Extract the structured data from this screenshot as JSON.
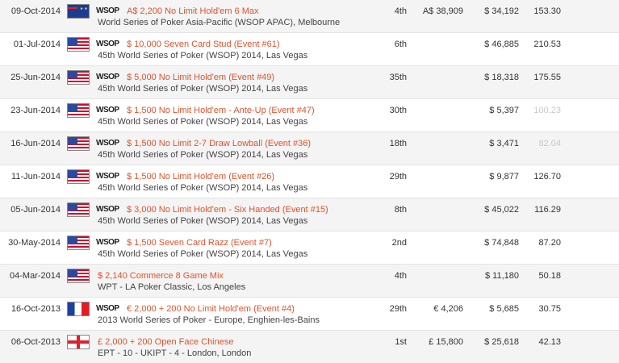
{
  "logo_text": "WSOP",
  "rows": [
    {
      "date": "09-Oct-2014",
      "flag": "australia",
      "show_logo": true,
      "event": "A$ 2,200 No Limit Hold'em 6 Max",
      "sub": "World Series of Poker Asia-Pacific (WSOP APAC), Melbourne",
      "place": "4th",
      "local": "A$ 38,909",
      "usd": "$ 34,192",
      "points": "153.30"
    },
    {
      "date": "01-Jul-2014",
      "flag": "usa",
      "show_logo": true,
      "event": "$ 10,000 Seven Card Stud (Event #61)",
      "sub": "45th World Series of Poker (WSOP) 2014, Las Vegas",
      "place": "6th",
      "local": "",
      "usd": "$ 46,885",
      "points": "210.53"
    },
    {
      "date": "25-Jun-2014",
      "flag": "usa",
      "show_logo": true,
      "event": "$ 5,000 No Limit Hold'em (Event #49)",
      "sub": "45th World Series of Poker (WSOP) 2014, Las Vegas",
      "place": "35th",
      "local": "",
      "usd": "$ 18,318",
      "points": "175.55"
    },
    {
      "date": "23-Jun-2014",
      "flag": "usa",
      "show_logo": true,
      "event": "$ 1,500 No Limit Hold'em - Ante-Up (Event #47)",
      "sub": "45th World Series of Poker (WSOP) 2014, Las Vegas",
      "place": "30th",
      "local": "",
      "usd": "$ 5,397",
      "points": "100.23"
    },
    {
      "date": "16-Jun-2014",
      "flag": "usa",
      "show_logo": true,
      "event": "$ 1,500 No Limit 2-7 Draw Lowball (Event #36)",
      "sub": "45th World Series of Poker (WSOP) 2014, Las Vegas",
      "place": "18th",
      "local": "",
      "usd": "$ 3,471",
      "points": "82.04"
    },
    {
      "date": "11-Jun-2014",
      "flag": "usa",
      "show_logo": true,
      "event": "$ 1,500 No Limit Hold'em (Event #26)",
      "sub": "45th World Series of Poker (WSOP) 2014, Las Vegas",
      "place": "29th",
      "local": "",
      "usd": "$ 9,877",
      "points": "126.70"
    },
    {
      "date": "05-Jun-2014",
      "flag": "usa",
      "show_logo": true,
      "event": "$ 3,000 No Limit Hold'em - Six Handed (Event #15)",
      "sub": "45th World Series of Poker (WSOP) 2014, Las Vegas",
      "place": "8th",
      "local": "",
      "usd": "$ 45,022",
      "points": "116.29"
    },
    {
      "date": "30-May-2014",
      "flag": "usa",
      "show_logo": true,
      "event": "$ 1,500 Seven Card Razz (Event #7)",
      "sub": "45th World Series of Poker (WSOP) 2014, Las Vegas",
      "place": "2nd",
      "local": "",
      "usd": "$ 74,848",
      "points": "87.20"
    },
    {
      "date": "04-Mar-2014",
      "flag": "usa",
      "show_logo": false,
      "event": "$ 2,140 Commerce 8 Game Mix",
      "sub": "WPT - LA Poker Classic, Los Angeles",
      "place": "4th",
      "local": "",
      "usd": "$ 11,180",
      "points": "50.18"
    },
    {
      "date": "16-Oct-2013",
      "flag": "france",
      "show_logo": true,
      "event": "€ 2,000 + 200 No Limit Hold'em (Event #4)",
      "sub": "2013 World Series of Poker - Europe, Enghien-les-Bains",
      "place": "29th",
      "local": "€ 4,206",
      "usd": "$ 5,685",
      "points": "30.75"
    },
    {
      "date": "06-Oct-2013",
      "flag": "england",
      "show_logo": false,
      "event": "£ 2,000 + 200 Open Face Chinese",
      "sub": "EPT - 10 - UKIPT - 4 - London, London",
      "place": "1st",
      "local": "£ 15,800",
      "usd": "$ 25,618",
      "points": "42.13"
    }
  ],
  "faint_points_rows": [
    3,
    4
  ]
}
